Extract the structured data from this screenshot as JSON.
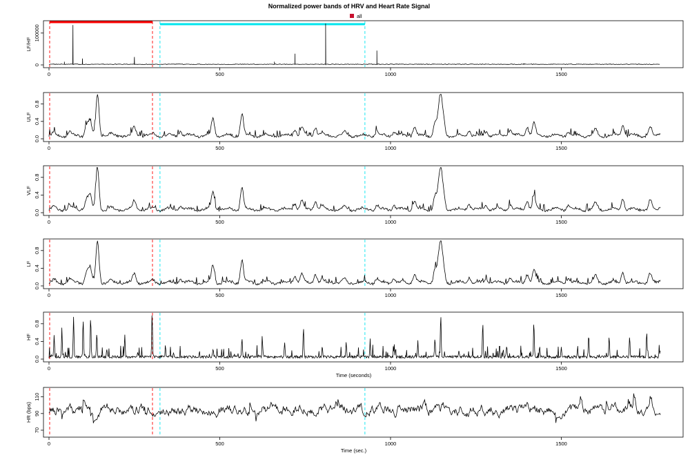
{
  "title": "Normalized power bands of HRV and Heart Rate Signal",
  "legend": {
    "label": "all",
    "color": "#c8102e"
  },
  "colors": {
    "episode_red": "#ff0000",
    "episode_cyan": "#00e5ee",
    "signal": "#000000"
  },
  "episodes": [
    {
      "name": "all",
      "color": "#ff0000",
      "start": 2,
      "end": 303
    },
    {
      "name": "",
      "color": "#00e5ee",
      "start": 325,
      "end": 925
    }
  ],
  "chart_data": [
    {
      "type": "line",
      "ylabel": "LF/HF",
      "xlim": [
        0,
        1800
      ],
      "ylim": [
        0,
        130000
      ],
      "yticks": [
        0,
        100000
      ],
      "yticklabels": [
        "0",
        "100000"
      ],
      "xticks": [
        0,
        500,
        1000,
        1500
      ],
      "xlabel": "",
      "style": "spike",
      "baseline": 2000,
      "spikes": [
        [
          70,
          125000
        ],
        [
          98,
          20000
        ],
        [
          45,
          10000
        ],
        [
          250,
          25000
        ],
        [
          720,
          35000
        ],
        [
          810,
          130000
        ],
        [
          960,
          45000
        ],
        [
          660,
          10000
        ],
        [
          1390,
          5000
        ],
        [
          1780,
          2000
        ]
      ]
    },
    {
      "type": "line",
      "ylabel": "ULF",
      "xlim": [
        0,
        1800
      ],
      "ylim": [
        0,
        1
      ],
      "yticks": [
        0,
        0.4,
        0.8
      ],
      "yticklabels": [
        "0.0",
        "0.4",
        "0.8"
      ],
      "xticks": [
        0,
        500,
        1000,
        1500
      ],
      "xlabel": "",
      "style": "smooth",
      "peaks": [
        [
          15,
          0.1
        ],
        [
          60,
          0.14
        ],
        [
          110,
          0.3
        ],
        [
          120,
          0.38
        ],
        [
          142,
          1.0
        ],
        [
          180,
          0.08
        ],
        [
          250,
          0.25
        ],
        [
          305,
          0.1
        ],
        [
          385,
          0.15
        ],
        [
          480,
          0.45
        ],
        [
          565,
          0.55
        ],
        [
          720,
          0.2
        ],
        [
          740,
          0.25
        ],
        [
          780,
          0.25
        ],
        [
          800,
          0.12
        ],
        [
          865,
          0.12
        ],
        [
          960,
          0.15
        ],
        [
          1010,
          0.15
        ],
        [
          1070,
          0.25
        ],
        [
          1130,
          0.35
        ],
        [
          1140,
          0.4
        ],
        [
          1147,
          0.84
        ],
        [
          1155,
          0.38
        ],
        [
          1230,
          0.18
        ],
        [
          1280,
          0.15
        ],
        [
          1350,
          0.18
        ],
        [
          1400,
          0.25
        ],
        [
          1420,
          0.35
        ],
        [
          1520,
          0.15
        ],
        [
          1600,
          0.2
        ],
        [
          1680,
          0.3
        ],
        [
          1760,
          0.25
        ],
        [
          1790,
          0.12
        ]
      ]
    },
    {
      "type": "line",
      "ylabel": "VLF",
      "xlim": [
        0,
        1800
      ],
      "ylim": [
        0,
        1
      ],
      "yticks": [
        0,
        0.4,
        0.8
      ],
      "yticklabels": [
        "0.0",
        "0.4",
        "0.8"
      ],
      "xticks": [
        0,
        500,
        1000,
        1500
      ],
      "xlabel": "",
      "style": "smooth",
      "peaks": [
        [
          15,
          0.1
        ],
        [
          60,
          0.14
        ],
        [
          110,
          0.3
        ],
        [
          120,
          0.38
        ],
        [
          142,
          1.0
        ],
        [
          180,
          0.08
        ],
        [
          250,
          0.25
        ],
        [
          305,
          0.1
        ],
        [
          385,
          0.15
        ],
        [
          480,
          0.45
        ],
        [
          565,
          0.55
        ],
        [
          720,
          0.2
        ],
        [
          740,
          0.25
        ],
        [
          780,
          0.25
        ],
        [
          800,
          0.12
        ],
        [
          865,
          0.12
        ],
        [
          960,
          0.15
        ],
        [
          1010,
          0.15
        ],
        [
          1070,
          0.25
        ],
        [
          1130,
          0.35
        ],
        [
          1140,
          0.4
        ],
        [
          1147,
          0.82
        ],
        [
          1155,
          0.38
        ],
        [
          1230,
          0.18
        ],
        [
          1280,
          0.15
        ],
        [
          1350,
          0.18
        ],
        [
          1400,
          0.25
        ],
        [
          1420,
          0.35
        ],
        [
          1520,
          0.15
        ],
        [
          1600,
          0.2
        ],
        [
          1680,
          0.3
        ],
        [
          1760,
          0.25
        ],
        [
          1790,
          0.12
        ]
      ]
    },
    {
      "type": "line",
      "ylabel": "LF",
      "xlim": [
        0,
        1800
      ],
      "ylim": [
        0,
        1
      ],
      "yticks": [
        0,
        0.4,
        0.8
      ],
      "yticklabels": [
        "0.0",
        "0.4",
        "0.8"
      ],
      "xticks": [
        0,
        500,
        1000,
        1500
      ],
      "xlabel": "",
      "style": "smooth",
      "peaks": [
        [
          15,
          0.1
        ],
        [
          60,
          0.14
        ],
        [
          110,
          0.3
        ],
        [
          120,
          0.38
        ],
        [
          142,
          1.0
        ],
        [
          180,
          0.08
        ],
        [
          250,
          0.25
        ],
        [
          305,
          0.1
        ],
        [
          385,
          0.15
        ],
        [
          480,
          0.45
        ],
        [
          565,
          0.55
        ],
        [
          720,
          0.2
        ],
        [
          740,
          0.25
        ],
        [
          780,
          0.25
        ],
        [
          800,
          0.12
        ],
        [
          865,
          0.12
        ],
        [
          960,
          0.15
        ],
        [
          1010,
          0.15
        ],
        [
          1070,
          0.25
        ],
        [
          1130,
          0.35
        ],
        [
          1140,
          0.4
        ],
        [
          1147,
          0.8
        ],
        [
          1155,
          0.38
        ],
        [
          1230,
          0.18
        ],
        [
          1280,
          0.15
        ],
        [
          1350,
          0.18
        ],
        [
          1400,
          0.25
        ],
        [
          1420,
          0.35
        ],
        [
          1520,
          0.15
        ],
        [
          1600,
          0.2
        ],
        [
          1680,
          0.3
        ],
        [
          1760,
          0.25
        ],
        [
          1790,
          0.12
        ]
      ]
    },
    {
      "type": "line",
      "ylabel": "HF",
      "xlim": [
        0,
        1800
      ],
      "ylim": [
        0,
        1
      ],
      "yticks": [
        0,
        0.4,
        0.8
      ],
      "yticklabels": [
        "0.0",
        "0.4",
        "0.8"
      ],
      "xticks": [
        0,
        500,
        1000,
        1500
      ],
      "xlabel": "Time (seconds)",
      "style": "spiky",
      "peaks": [
        [
          15,
          0.55
        ],
        [
          38,
          0.55
        ],
        [
          72,
          0.98
        ],
        [
          100,
          0.9
        ],
        [
          122,
          0.95
        ],
        [
          140,
          0.6
        ],
        [
          170,
          0.2
        ],
        [
          222,
          0.55
        ],
        [
          260,
          0.15
        ],
        [
          302,
          1.0
        ],
        [
          365,
          0.12
        ],
        [
          480,
          0.2
        ],
        [
          565,
          0.5
        ],
        [
          625,
          0.4
        ],
        [
          690,
          0.4
        ],
        [
          745,
          0.75
        ],
        [
          800,
          0.3
        ],
        [
          870,
          0.4
        ],
        [
          940,
          0.3
        ],
        [
          1010,
          0.2
        ],
        [
          1080,
          0.4
        ],
        [
          1130,
          0.5
        ],
        [
          1147,
          1.0
        ],
        [
          1200,
          0.2
        ],
        [
          1270,
          0.85
        ],
        [
          1340,
          0.3
        ],
        [
          1420,
          0.7
        ],
        [
          1500,
          0.3
        ],
        [
          1580,
          0.5
        ],
        [
          1640,
          0.5
        ],
        [
          1700,
          0.55
        ],
        [
          1750,
          0.6
        ],
        [
          1790,
          0.2
        ]
      ]
    },
    {
      "type": "line",
      "ylabel": "HR (bps)",
      "xlim": [
        0,
        1800
      ],
      "ylim": [
        65,
        118
      ],
      "yticks": [
        70,
        90,
        110
      ],
      "yticklabels": [
        "70",
        "90",
        "110"
      ],
      "xticks": [
        0,
        500,
        1000,
        1500
      ],
      "xlabel": "Time (sec.)",
      "style": "hr",
      "mean": 95,
      "amplitude": 10
    }
  ],
  "xticklabels": [
    "0",
    "500",
    "1000",
    "1500"
  ]
}
